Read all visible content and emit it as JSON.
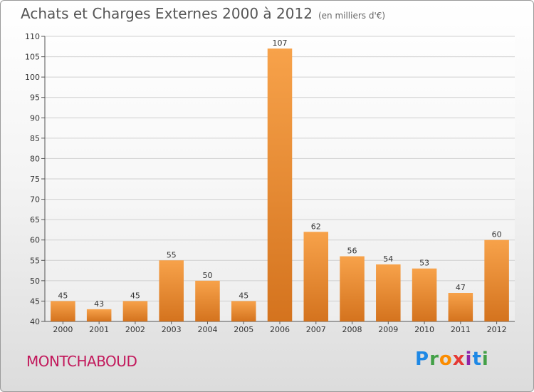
{
  "title": "Achats et Charges Externes 2000 à 2012",
  "subtitle": "(en milliers d'€)",
  "place": "MONTCHABOUD",
  "brand": {
    "letters": [
      {
        "char": "P",
        "color": "#1e88e5"
      },
      {
        "char": "r",
        "color": "#43a047"
      },
      {
        "char": "o",
        "color": "#fb8c00"
      },
      {
        "char": "x",
        "color": "#e53935"
      },
      {
        "char": "i",
        "color": "#8e24aa"
      },
      {
        "char": "t",
        "color": "#1e88e5"
      },
      {
        "char": "i",
        "color": "#43a047"
      }
    ]
  },
  "colors": {
    "bar_light": "#f7a24a",
    "bar_dark": "#d4731e",
    "grid": "#d0d0d0",
    "place": "#c2185b"
  },
  "chart_data": {
    "type": "bar",
    "title": "Achats et Charges Externes 2000 à 2012",
    "subtitle": "(en milliers d'€)",
    "categories": [
      "2000",
      "2001",
      "2002",
      "2003",
      "2004",
      "2005",
      "2006",
      "2007",
      "2008",
      "2009",
      "2010",
      "2011",
      "2012"
    ],
    "values": [
      45,
      43,
      45,
      55,
      50,
      45,
      107,
      62,
      56,
      54,
      53,
      47,
      60
    ],
    "ylim": [
      40,
      110
    ],
    "yticks": [
      40,
      45,
      50,
      55,
      60,
      65,
      70,
      75,
      80,
      85,
      90,
      95,
      100,
      105,
      110
    ],
    "grid": true,
    "legend": "none"
  }
}
